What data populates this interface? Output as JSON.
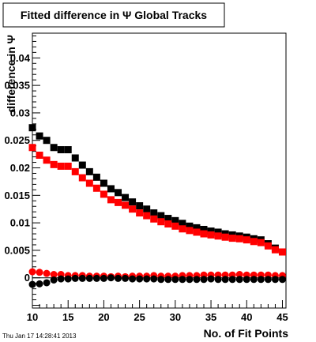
{
  "chart_data": {
    "type": "scatter",
    "title": "Fitted difference in Ψ   Global Tracks",
    "xlabel": "No. of Fit Points",
    "ylabel": "difference in Ψ",
    "xlim": [
      10,
      45.5
    ],
    "ylim": [
      -0.0055,
      0.0445
    ],
    "x_ticks": [
      "10",
      "15",
      "20",
      "25",
      "30",
      "35",
      "40",
      "45"
    ],
    "y_ticks": [
      "0",
      "0.005",
      "0.01",
      "0.015",
      "0.02",
      "0.025",
      "0.03",
      "0.035",
      "0.04"
    ],
    "x": [
      10,
      11,
      12,
      13,
      14,
      15,
      16,
      17,
      18,
      19,
      20,
      21,
      22,
      23,
      24,
      25,
      26,
      27,
      28,
      29,
      30,
      31,
      32,
      33,
      34,
      35,
      36,
      37,
      38,
      39,
      40,
      41,
      42,
      43,
      44,
      45
    ],
    "grid": false,
    "legend": "none",
    "series": [
      {
        "marker": "square",
        "color": "#000000",
        "values": [
          0.0273,
          0.0258,
          0.025,
          0.0237,
          0.0233,
          0.0233,
          0.0218,
          0.0205,
          0.0193,
          0.0183,
          0.0172,
          0.0162,
          0.0155,
          0.0146,
          0.0138,
          0.0131,
          0.0125,
          0.0118,
          0.0113,
          0.0108,
          0.0104,
          0.0099,
          0.0094,
          0.0091,
          0.0088,
          0.0085,
          0.0083,
          0.008,
          0.0078,
          0.0076,
          0.0074,
          0.0071,
          0.0069,
          0.0062,
          0.0054,
          0.0047
        ]
      },
      {
        "marker": "square",
        "color": "#ff0000",
        "values": [
          0.0237,
          0.0223,
          0.0214,
          0.0206,
          0.0203,
          0.0203,
          0.0193,
          0.0182,
          0.0172,
          0.0163,
          0.0152,
          0.0142,
          0.0137,
          0.0132,
          0.0125,
          0.0118,
          0.0113,
          0.0107,
          0.0102,
          0.0098,
          0.0094,
          0.0089,
          0.0086,
          0.0083,
          0.008,
          0.0078,
          0.0076,
          0.0074,
          0.0072,
          0.0071,
          0.0069,
          0.0066,
          0.0064,
          0.0058,
          0.0051,
          0.0047
        ]
      },
      {
        "marker": "circle",
        "color": "#ff0000",
        "values": [
          0.0011,
          0.001,
          0.0008,
          0.0006,
          0.0006,
          0.0004,
          0.0004,
          0.0004,
          0.0003,
          0.0003,
          0.0003,
          0.0002,
          0.0003,
          0.0002,
          0.0003,
          0.0003,
          0.0003,
          0.0004,
          0.0003,
          0.0003,
          0.0003,
          0.0004,
          0.0004,
          0.0004,
          0.0005,
          0.0005,
          0.0005,
          0.0005,
          0.0005,
          0.0006,
          0.0005,
          0.0005,
          0.0005,
          0.0005,
          0.0004,
          0.0004
        ]
      },
      {
        "marker": "circle",
        "color": "#000000",
        "values": [
          -0.0012,
          -0.0011,
          -0.0009,
          -0.0004,
          -0.0002,
          -0.0002,
          -0.0001,
          -0.0001,
          -0.0001,
          -0.0001,
          -0.0001,
          0.0,
          -0.0001,
          -0.0001,
          -0.0002,
          -0.0002,
          -0.0002,
          -0.0002,
          -0.0003,
          -0.0003,
          -0.0003,
          -0.0003,
          -0.0003,
          -0.0003,
          -0.0003,
          -0.0002,
          -0.0003,
          -0.0003,
          -0.0003,
          -0.0003,
          -0.0003,
          -0.0003,
          -0.0003,
          -0.0003,
          -0.0003,
          -0.0003
        ]
      }
    ]
  },
  "footer": {
    "timestamp": "Thu Jan 17 14:28:41 2013"
  }
}
